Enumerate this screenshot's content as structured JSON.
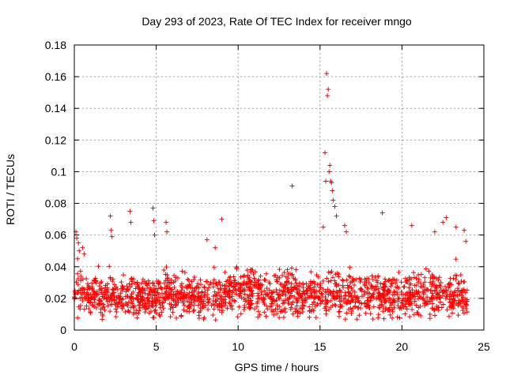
{
  "chart_data": {
    "type": "scatter",
    "title": "Day 293 of 2023, Rate Of TEC Index for receiver mngo",
    "xlabel": "GPS time / hours",
    "ylabel": "ROTI / TECUs",
    "xlim": [
      0,
      25
    ],
    "ylim": [
      0,
      0.18
    ],
    "xticks": [
      0,
      5,
      10,
      15,
      20,
      25
    ],
    "xtick_labels": [
      "0",
      "5",
      "10",
      "15",
      "20",
      "25"
    ],
    "yticks": [
      0,
      0.02,
      0.04,
      0.06,
      0.08,
      0.1,
      0.12,
      0.14,
      0.16,
      0.18
    ],
    "ytick_labels": [
      "0",
      "0.02",
      "0.04",
      "0.06",
      "0.08",
      "0.1",
      "0.12",
      "0.14",
      "0.16",
      "0.18"
    ],
    "grid": true,
    "marker": "plus",
    "marker_color": "#ff0000",
    "series": [
      {
        "name": "ROTI",
        "x": [
          0.1,
          0.15,
          0.2,
          0.25,
          0.3,
          0.5,
          0.6,
          2.2,
          2.25,
          2.3,
          3.4,
          3.45,
          4.8,
          4.85,
          4.9,
          5.6,
          5.65,
          8.1,
          8.6,
          9.0,
          13.3,
          15.2,
          15.3,
          15.35,
          15.4,
          15.45,
          15.5,
          15.55,
          15.6,
          15.65,
          15.7,
          15.75,
          15.8,
          15.9,
          16.0,
          16.5,
          16.6,
          18.8,
          20.6,
          22.0,
          22.5,
          22.7,
          23.3,
          23.8,
          23.9
        ],
        "y": [
          0.062,
          0.058,
          0.045,
          0.055,
          0.05,
          0.052,
          0.048,
          0.072,
          0.063,
          0.059,
          0.075,
          0.068,
          0.077,
          0.069,
          0.06,
          0.068,
          0.062,
          0.057,
          0.052,
          0.07,
          0.091,
          0.065,
          0.112,
          0.094,
          0.162,
          0.148,
          0.152,
          0.1,
          0.104,
          0.094,
          0.093,
          0.088,
          0.082,
          0.078,
          0.072,
          0.066,
          0.062,
          0.074,
          0.066,
          0.062,
          0.068,
          0.071,
          0.065,
          0.063,
          0.056
        ]
      }
    ]
  }
}
